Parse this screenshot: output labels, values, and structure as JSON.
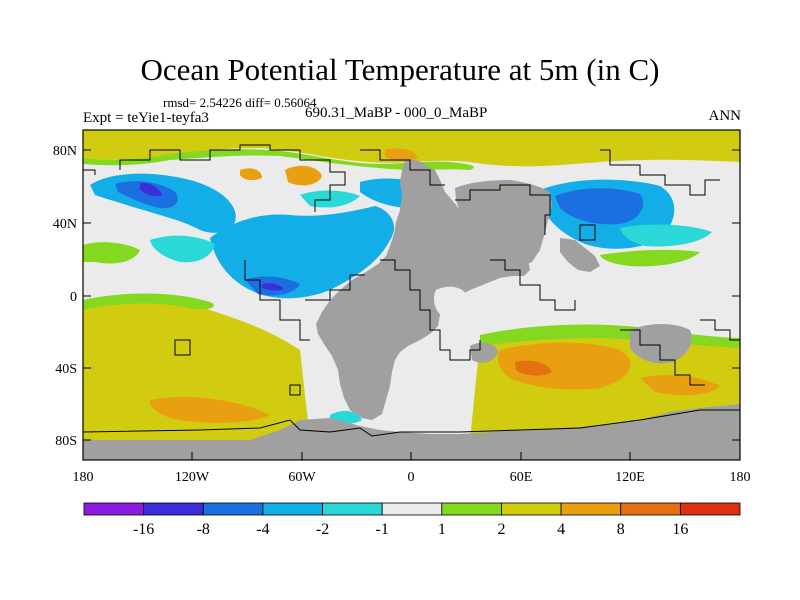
{
  "figure": {
    "title": "Ocean Potential Temperature at 5m (in C)",
    "stats_text": "rmsd= 2.54226 diff= 0.56064",
    "left_label": "Expt = teYie1-teyfa3",
    "center_label": "690.31_MaBP - 000_0_MaBP",
    "right_label": "ANN"
  },
  "map": {
    "y_tick_labels": [
      "80N",
      "40N",
      "0",
      "40S",
      "80S"
    ],
    "x_tick_labels": [
      "180",
      "120W",
      "60W",
      "0",
      "60E",
      "120E",
      "180"
    ],
    "land_color": "#a0a0a0",
    "coast_color": "#000000"
  },
  "colorbar": {
    "labels": [
      "-16",
      "-8",
      "-4",
      "-2",
      "-1",
      "1",
      "2",
      "4",
      "8",
      "16"
    ],
    "colors": [
      "#8b1be0",
      "#3a2fd8",
      "#1c6fe0",
      "#13aee8",
      "#2ad8d8",
      "#ebebeb",
      "#85d820",
      "#d2cc10",
      "#e9a010",
      "#e57010",
      "#dd3010"
    ]
  }
}
